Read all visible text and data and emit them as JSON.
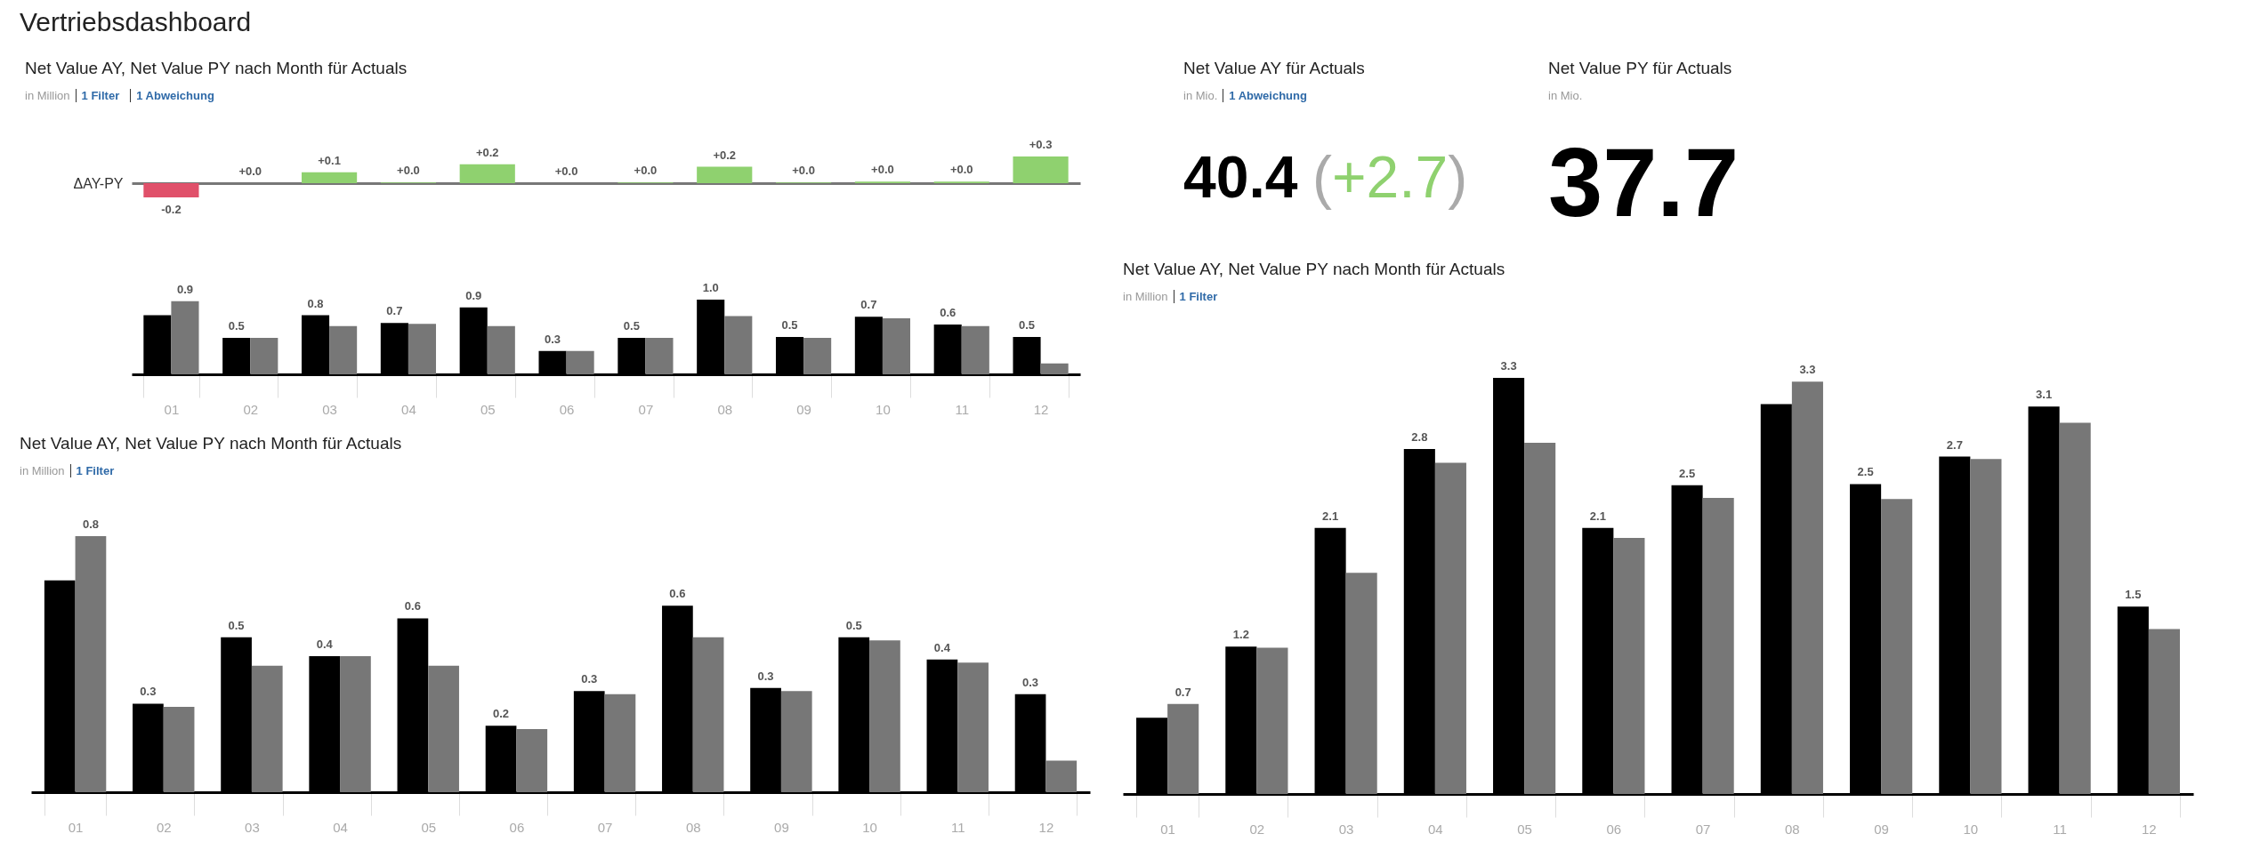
{
  "chart_data": [
    {
      "type": "other",
      "title": "Vertriebsdashboard"
    },
    {
      "type": "bar",
      "title": "Net Value AY, Net Value PY nach Month für Actuals",
      "subtitle": "in Million",
      "annotations": [
        "1 Filter",
        "1 Abweichung"
      ],
      "ylabel": "ΔAY-PY",
      "categories": [
        "01",
        "02",
        "03",
        "04",
        "05",
        "06",
        "07",
        "08",
        "09",
        "10",
        "11",
        "12"
      ],
      "values": [
        -0.18,
        0.0,
        0.14,
        0.01,
        0.24,
        0.0,
        0.01,
        0.21,
        0.01,
        0.02,
        0.02,
        0.34
      ],
      "colors": [
        "#e0506a",
        "#8fd16f",
        "#8fd16f",
        "#8fd16f",
        "#8fd16f",
        "#8fd16f",
        "#8fd16f",
        "#8fd16f",
        "#8fd16f",
        "#8fd16f",
        "#8fd16f",
        "#8fd16f"
      ],
      "value_labels": [
        "-0.2",
        "+0.0",
        "+0.1",
        "+0.0",
        "+0.2",
        "+0.0",
        "+0.0",
        "+0.2",
        "+0.0",
        "+0.0",
        "+0.0",
        "+0.3"
      ],
      "tick_labels": false,
      "grid": false,
      "legend": false
    },
    {
      "type": "bar",
      "categories": [
        "01",
        "02",
        "03",
        "04",
        "05",
        "06",
        "07",
        "08",
        "09",
        "10",
        "11",
        "12"
      ],
      "series": [
        {
          "color": "#000000",
          "values": [
            0.76,
            0.47,
            0.76,
            0.66,
            0.86,
            0.3,
            0.47,
            0.96,
            0.48,
            0.74,
            0.64,
            0.48
          ],
          "value_labels": [
            null,
            "0.5",
            "0.8",
            "0.7",
            "0.9",
            "0.3",
            "0.5",
            "1.0",
            "0.5",
            "0.7",
            "0.6",
            "0.5"
          ]
        },
        {
          "color": "#777777",
          "values": [
            0.94,
            0.47,
            0.62,
            0.65,
            0.62,
            0.3,
            0.47,
            0.75,
            0.47,
            0.72,
            0.62,
            0.14
          ],
          "value_labels": [
            "0.9",
            null,
            null,
            null,
            null,
            null,
            null,
            null,
            null,
            null,
            null,
            null
          ]
        }
      ],
      "tick_labels": "x",
      "grid": false,
      "legend": false
    },
    {
      "type": "other",
      "title": "Net Value AY für Actuals",
      "subtitle": "in Mio.",
      "annotations": [
        "1 Abweichung"
      ],
      "value_labels": [
        "40.4",
        "(+2.7)"
      ],
      "colors": [
        "#000000",
        "#8fd16f"
      ]
    },
    {
      "type": "other",
      "title": "Net Value PY für Actuals",
      "subtitle": "in Mio.",
      "value_labels": [
        "37.7"
      ],
      "colors": [
        "#000000"
      ]
    },
    {
      "type": "bar",
      "title": "Net Value AY, Net Value PY nach Month für Actuals",
      "subtitle": "in Million",
      "annotations": [
        "1 Filter"
      ],
      "categories": [
        "01",
        "02",
        "03",
        "04",
        "05",
        "06",
        "07",
        "08",
        "09",
        "10",
        "11",
        "12"
      ],
      "series": [
        {
          "color": "#000000",
          "values": [
            0.61,
            1.18,
            2.13,
            2.76,
            3.33,
            2.13,
            2.47,
            3.12,
            2.48,
            2.7,
            3.1,
            1.5
          ],
          "value_labels": [
            null,
            "1.2",
            "2.1",
            "2.8",
            "3.3",
            "2.1",
            "2.5",
            null,
            "2.5",
            "2.7",
            "3.1",
            "1.5"
          ]
        },
        {
          "color": "#777777",
          "values": [
            0.72,
            1.17,
            1.77,
            2.65,
            2.81,
            2.05,
            2.37,
            3.3,
            2.36,
            2.68,
            2.97,
            1.32
          ],
          "value_labels": [
            "0.7",
            null,
            null,
            null,
            null,
            null,
            null,
            "3.3",
            null,
            null,
            null,
            null
          ]
        }
      ],
      "tick_labels": "x",
      "grid": false,
      "legend": false
    },
    {
      "type": "bar",
      "title": "Net Value AY, Net Value PY nach Month für Actuals",
      "subtitle": "in Million",
      "annotations": [
        "1 Filter"
      ],
      "categories": [
        "01",
        "02",
        "03",
        "04",
        "05",
        "06",
        "07",
        "08",
        "09",
        "10",
        "11",
        "12"
      ],
      "series": [
        {
          "color": "#000000",
          "values": [
            0.67,
            0.28,
            0.49,
            0.43,
            0.55,
            0.21,
            0.32,
            0.59,
            0.33,
            0.49,
            0.42,
            0.31
          ],
          "value_labels": [
            null,
            "0.3",
            "0.5",
            "0.4",
            "0.6",
            "0.2",
            "0.3",
            "0.6",
            "0.3",
            "0.5",
            "0.4",
            "0.3"
          ]
        },
        {
          "color": "#777777",
          "values": [
            0.81,
            0.27,
            0.4,
            0.43,
            0.4,
            0.2,
            0.31,
            0.49,
            0.32,
            0.48,
            0.41,
            0.1
          ],
          "value_labels": [
            "0.8",
            null,
            null,
            null,
            null,
            null,
            null,
            null,
            null,
            null,
            null,
            null
          ]
        }
      ],
      "tick_labels": "x",
      "grid": false,
      "legend": false
    }
  ]
}
